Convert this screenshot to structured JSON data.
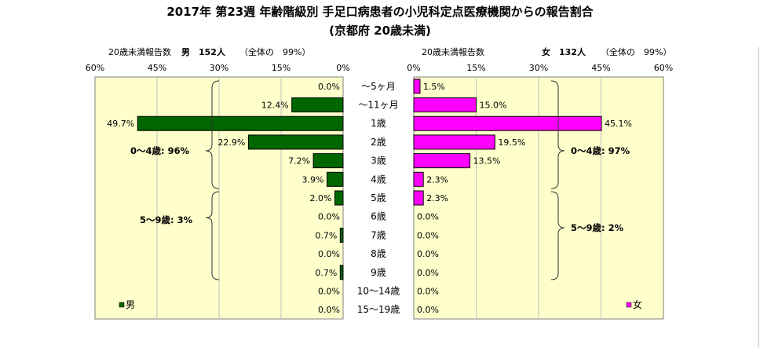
{
  "header": {
    "title": "2017年 第23週 年齢階級別 手足口病患者の小児科定点医療機関からの報告割合",
    "subtitle": "(京都府 20歳未満)"
  },
  "chart_data": {
    "type": "bar",
    "orientation": "horizontal-butterfly",
    "categories": [
      "～5ヶ月",
      "～11ヶ月",
      "1歳",
      "2歳",
      "3歳",
      "4歳",
      "5歳",
      "6歳",
      "7歳",
      "8歳",
      "9歳",
      "10～14歳",
      "15～19歳"
    ],
    "series": [
      {
        "name": "男",
        "color": "#006600",
        "values": [
          0.0,
          12.4,
          49.7,
          22.9,
          7.2,
          3.9,
          2.0,
          0.0,
          0.7,
          0.0,
          0.7,
          0.0,
          0.0
        ],
        "value_labels": [
          "0.0%",
          "12.4%",
          "49.7%",
          "22.9%",
          "7.2%",
          "3.9%",
          "2.0%",
          "0.0%",
          "0.7%",
          "0.0%",
          "0.7%",
          "0.0%",
          "0.0%"
        ]
      },
      {
        "name": "女",
        "color": "#ff00ff",
        "values": [
          1.5,
          15.0,
          45.1,
          19.5,
          13.5,
          2.3,
          2.3,
          0.0,
          0.0,
          0.0,
          0.0,
          0.0,
          0.0
        ],
        "value_labels": [
          "1.5%",
          "15.0%",
          "45.1%",
          "19.5%",
          "13.5%",
          "2.3%",
          "2.3%",
          "0.0%",
          "0.0%",
          "0.0%",
          "0.0%",
          "0.0%",
          "0.0%"
        ]
      }
    ],
    "xlim": [
      0,
      60
    ],
    "ticks": [
      "60%",
      "45%",
      "30%",
      "15%",
      "0%"
    ],
    "ticks_right": [
      "0%",
      "15%",
      "30%",
      "45%",
      "60%"
    ],
    "grid": true,
    "plot_background": "#ffffcc",
    "left_panel": {
      "count_label": "20歳未満報告数",
      "sex_count": "男　152人",
      "share": "（全体の　99%）",
      "legend_label": "男",
      "groups": [
        {
          "label": "0～4歳: 96%"
        },
        {
          "label": "5～9歳: 3%"
        }
      ]
    },
    "right_panel": {
      "count_label": "20歳未満報告数",
      "sex_count": "女　132人",
      "share": "（全体の　99%）",
      "legend_label": "女",
      "groups": [
        {
          "label": "0～4歳: 97%"
        },
        {
          "label": "5～9歳: 2%"
        }
      ]
    }
  }
}
